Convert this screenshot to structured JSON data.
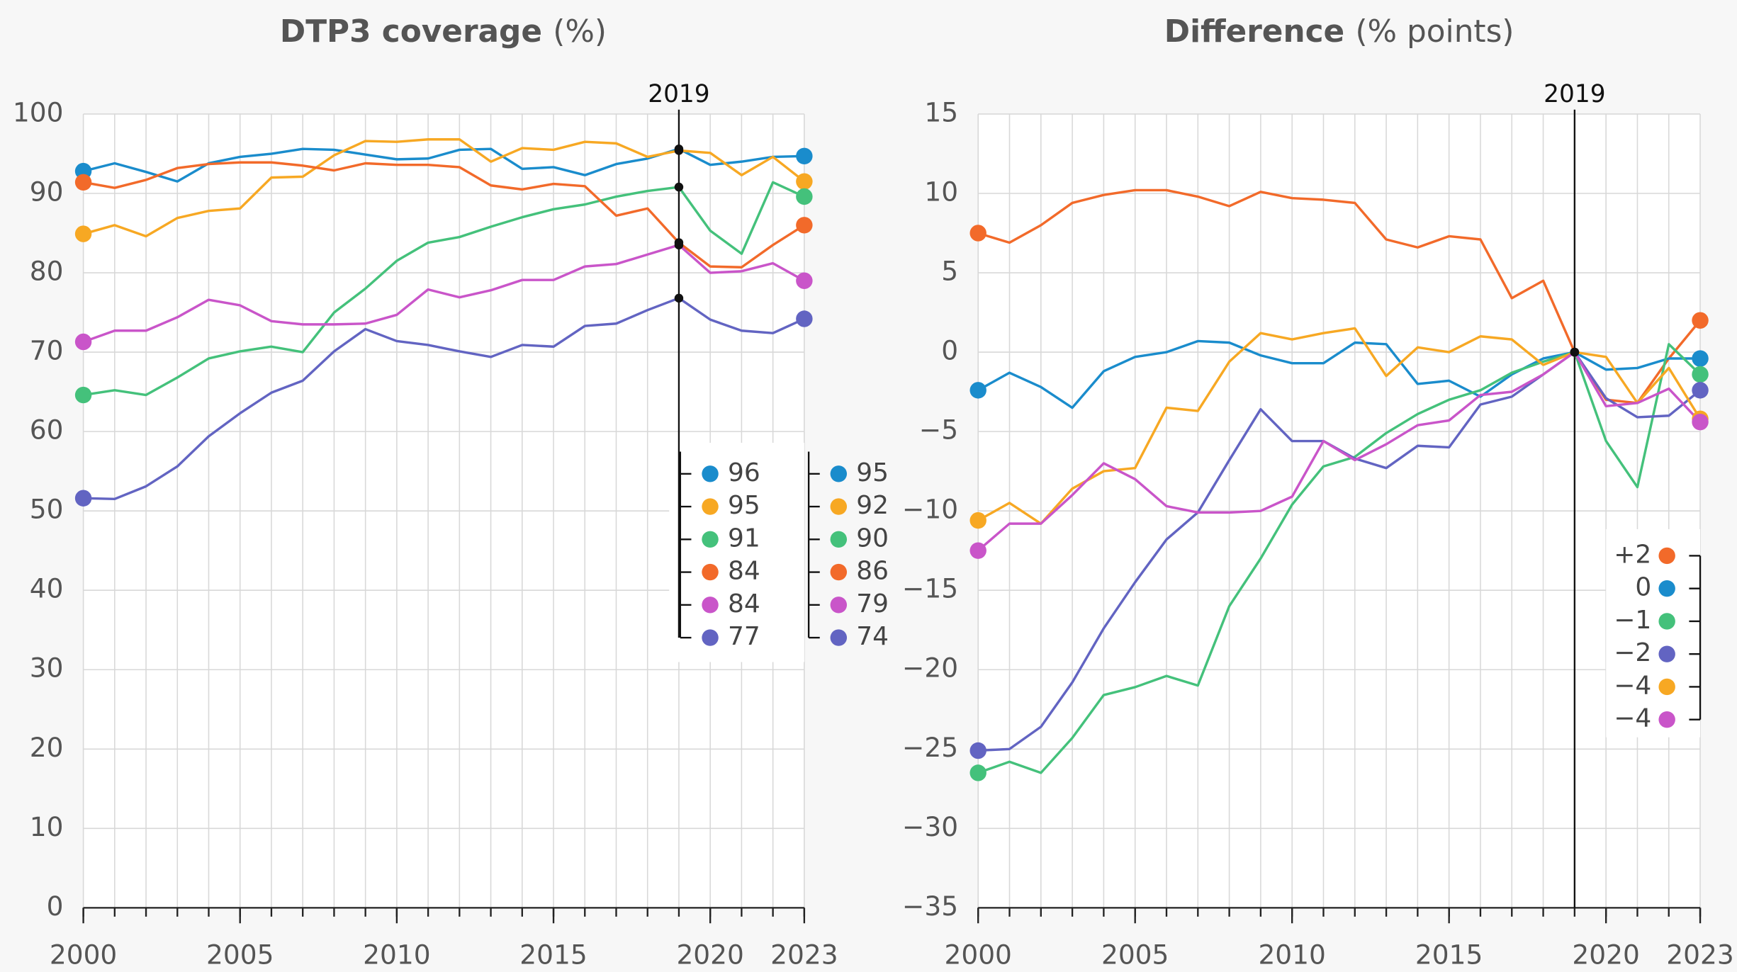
{
  "chart_data": [
    {
      "type": "line",
      "title": "DTP3 coverage",
      "title_unit": "(%)",
      "x": [
        2000,
        2001,
        2002,
        2003,
        2004,
        2005,
        2006,
        2007,
        2008,
        2009,
        2010,
        2011,
        2012,
        2013,
        2014,
        2015,
        2016,
        2017,
        2018,
        2019,
        2020,
        2021,
        2022,
        2023
      ],
      "xlim": [
        2000,
        2023
      ],
      "xticks": [
        2000,
        2005,
        2010,
        2015,
        2020,
        2023
      ],
      "ylim": [
        0,
        100
      ],
      "yticks": [
        0,
        10,
        20,
        30,
        40,
        50,
        60,
        70,
        80,
        90,
        100
      ],
      "marker_x": 2019,
      "grid": true,
      "series": [
        {
          "color": "#1a8ccc",
          "values": [
            92.8,
            93.8,
            92.7,
            91.5,
            93.8,
            94.6,
            95.0,
            95.6,
            95.5,
            94.9,
            94.3,
            94.4,
            95.5,
            95.6,
            93.1,
            93.3,
            92.3,
            93.7,
            94.4,
            95.6,
            93.6,
            94.0,
            94.6,
            94.7
          ],
          "value_labels": [
            null,
            null,
            null,
            null,
            null,
            null,
            null,
            null,
            null,
            null,
            null,
            null,
            null,
            null,
            null,
            null,
            null,
            null,
            null,
            "96",
            null,
            null,
            null,
            "95"
          ]
        },
        {
          "color": "#f7a823",
          "values": [
            84.9,
            86.0,
            84.6,
            86.9,
            87.8,
            88.1,
            92.0,
            92.1,
            94.8,
            96.6,
            96.5,
            96.8,
            96.8,
            94.0,
            95.7,
            95.5,
            96.5,
            96.3,
            94.6,
            95.4,
            95.1,
            92.3,
            94.6,
            91.5
          ],
          "value_labels": [
            null,
            null,
            null,
            null,
            null,
            null,
            null,
            null,
            null,
            null,
            null,
            null,
            null,
            null,
            null,
            null,
            null,
            null,
            null,
            "95",
            null,
            null,
            null,
            "92"
          ]
        },
        {
          "color": "#44c17b",
          "values": [
            64.6,
            65.2,
            64.6,
            66.8,
            69.2,
            70.1,
            70.7,
            70.0,
            75.0,
            78.0,
            81.5,
            83.8,
            84.5,
            85.8,
            87.0,
            88.0,
            88.6,
            89.6,
            90.3,
            90.8,
            85.3,
            82.4,
            91.4,
            89.6
          ],
          "value_labels": [
            null,
            null,
            null,
            null,
            null,
            null,
            null,
            null,
            null,
            null,
            null,
            null,
            null,
            null,
            null,
            null,
            null,
            null,
            null,
            "91",
            null,
            null,
            null,
            "90"
          ]
        },
        {
          "color": "#f26a2a",
          "values": [
            91.4,
            90.7,
            91.7,
            93.2,
            93.7,
            93.9,
            93.9,
            93.5,
            92.9,
            93.8,
            93.6,
            93.6,
            93.3,
            91.0,
            90.5,
            91.2,
            90.9,
            87.2,
            88.1,
            83.8,
            80.8,
            80.7,
            83.5,
            86.0
          ],
          "value_labels": [
            null,
            null,
            null,
            null,
            null,
            null,
            null,
            null,
            null,
            null,
            null,
            null,
            null,
            null,
            null,
            null,
            null,
            null,
            null,
            "84",
            null,
            null,
            null,
            "86"
          ]
        },
        {
          "color": "#c955c9",
          "values": [
            71.3,
            72.7,
            72.7,
            74.4,
            76.6,
            75.9,
            73.9,
            73.5,
            73.5,
            73.6,
            74.7,
            77.9,
            76.9,
            77.8,
            79.1,
            79.1,
            80.8,
            81.1,
            82.3,
            83.5,
            80.0,
            80.2,
            81.2,
            79.0
          ],
          "value_labels": [
            null,
            null,
            null,
            null,
            null,
            null,
            null,
            null,
            null,
            null,
            null,
            null,
            null,
            null,
            null,
            null,
            null,
            null,
            null,
            "84",
            null,
            null,
            null,
            "79"
          ]
        },
        {
          "color": "#6264c2",
          "values": [
            51.6,
            51.5,
            53.1,
            55.6,
            59.4,
            62.3,
            64.9,
            66.4,
            70.1,
            72.9,
            71.4,
            70.9,
            70.1,
            69.4,
            70.9,
            70.7,
            73.3,
            73.6,
            75.3,
            76.8,
            74.1,
            72.7,
            72.4,
            74.2
          ],
          "value_labels": [
            null,
            null,
            null,
            null,
            null,
            null,
            null,
            null,
            null,
            null,
            null,
            null,
            null,
            null,
            null,
            null,
            null,
            null,
            null,
            "77",
            null,
            null,
            null,
            "74"
          ]
        }
      ]
    },
    {
      "type": "line",
      "title": "Difference",
      "title_unit": "(% points)",
      "x": [
        2000,
        2001,
        2002,
        2003,
        2004,
        2005,
        2006,
        2007,
        2008,
        2009,
        2010,
        2011,
        2012,
        2013,
        2014,
        2015,
        2016,
        2017,
        2018,
        2019,
        2020,
        2021,
        2022,
        2023
      ],
      "xlim": [
        2000,
        2023
      ],
      "xticks": [
        2000,
        2005,
        2010,
        2015,
        2020,
        2023
      ],
      "ylim": [
        -35,
        15
      ],
      "yticks": [
        {
          "value": -35,
          "label": "−35"
        },
        {
          "value": -30,
          "label": "−30"
        },
        {
          "value": -25,
          "label": "−25"
        },
        {
          "value": -20,
          "label": "−20"
        },
        {
          "value": -15,
          "label": "−15"
        },
        {
          "value": -10,
          "label": "−10"
        },
        {
          "value": -5,
          "label": "−5"
        },
        0,
        5,
        10,
        15
      ],
      "marker_x": 2019,
      "grid": true,
      "series": [
        {
          "color": "#f26a2a",
          "values": [
            7.5,
            6.9,
            8.0,
            9.4,
            9.9,
            10.2,
            10.2,
            9.8,
            9.2,
            10.1,
            9.7,
            9.6,
            9.4,
            7.1,
            6.6,
            7.3,
            7.1,
            3.4,
            4.5,
            0,
            -3.0,
            -3.2,
            -0.4,
            2.0
          ],
          "value_labels": [
            null,
            null,
            null,
            null,
            null,
            null,
            null,
            null,
            null,
            null,
            null,
            null,
            null,
            null,
            null,
            null,
            null,
            null,
            null,
            null,
            null,
            null,
            null,
            "+2"
          ]
        },
        {
          "color": "#1a8ccc",
          "values": [
            -2.4,
            -1.3,
            -2.2,
            -3.5,
            -1.2,
            -0.3,
            0.0,
            0.7,
            0.6,
            -0.2,
            -0.7,
            -0.7,
            0.6,
            0.5,
            -2.0,
            -1.8,
            -2.8,
            -1.4,
            -0.4,
            0,
            -1.1,
            -1.0,
            -0.4,
            -0.4
          ],
          "value_labels": [
            null,
            null,
            null,
            null,
            null,
            null,
            null,
            null,
            null,
            null,
            null,
            null,
            null,
            null,
            null,
            null,
            null,
            null,
            null,
            null,
            null,
            null,
            null,
            "0"
          ]
        },
        {
          "color": "#44c17b",
          "values": [
            -26.5,
            -25.8,
            -26.5,
            -24.3,
            -21.6,
            -21.1,
            -20.4,
            -21.0,
            -16.0,
            -13.0,
            -9.6,
            -7.2,
            -6.6,
            -5.1,
            -3.9,
            -3.0,
            -2.4,
            -1.3,
            -0.6,
            0,
            -5.6,
            -8.5,
            0.5,
            -1.4
          ],
          "value_labels": [
            null,
            null,
            null,
            null,
            null,
            null,
            null,
            null,
            null,
            null,
            null,
            null,
            null,
            null,
            null,
            null,
            null,
            null,
            null,
            null,
            null,
            null,
            null,
            "−1"
          ]
        },
        {
          "color": "#6264c2",
          "values": [
            -25.1,
            -25.0,
            -23.6,
            -20.8,
            -17.4,
            -14.5,
            -11.8,
            -10.1,
            -6.8,
            -3.6,
            -5.6,
            -5.6,
            -6.7,
            -7.3,
            -5.9,
            -6.0,
            -3.3,
            -2.8,
            -1.4,
            0,
            -2.9,
            -4.1,
            -4.0,
            -2.4
          ],
          "value_labels": [
            null,
            null,
            null,
            null,
            null,
            null,
            null,
            null,
            null,
            null,
            null,
            null,
            null,
            null,
            null,
            null,
            null,
            null,
            null,
            null,
            null,
            null,
            null,
            "−2"
          ]
        },
        {
          "color": "#f7a823",
          "values": [
            -10.6,
            -9.5,
            -10.8,
            -8.6,
            -7.5,
            -7.3,
            -3.5,
            -3.7,
            -0.6,
            1.2,
            0.8,
            1.2,
            1.5,
            -1.5,
            0.3,
            0,
            1.0,
            0.8,
            -0.8,
            0,
            -0.3,
            -3.2,
            -1.0,
            -4.2
          ],
          "value_labels": [
            null,
            null,
            null,
            null,
            null,
            null,
            null,
            null,
            null,
            null,
            null,
            null,
            null,
            null,
            null,
            null,
            null,
            null,
            null,
            null,
            null,
            null,
            null,
            "−4"
          ]
        },
        {
          "color": "#c955c9",
          "values": [
            -12.5,
            -10.8,
            -10.8,
            -9.0,
            -7.0,
            -8.0,
            -9.7,
            -10.1,
            -10.1,
            -10.0,
            -9.1,
            -5.6,
            -6.8,
            -5.8,
            -4.6,
            -4.3,
            -2.7,
            -2.5,
            -1.4,
            0,
            -3.4,
            -3.2,
            -2.3,
            -4.4
          ],
          "value_labels": [
            null,
            null,
            null,
            null,
            null,
            null,
            null,
            null,
            null,
            null,
            null,
            null,
            null,
            null,
            null,
            null,
            null,
            null,
            null,
            null,
            null,
            null,
            null,
            "−4"
          ]
        }
      ]
    }
  ]
}
